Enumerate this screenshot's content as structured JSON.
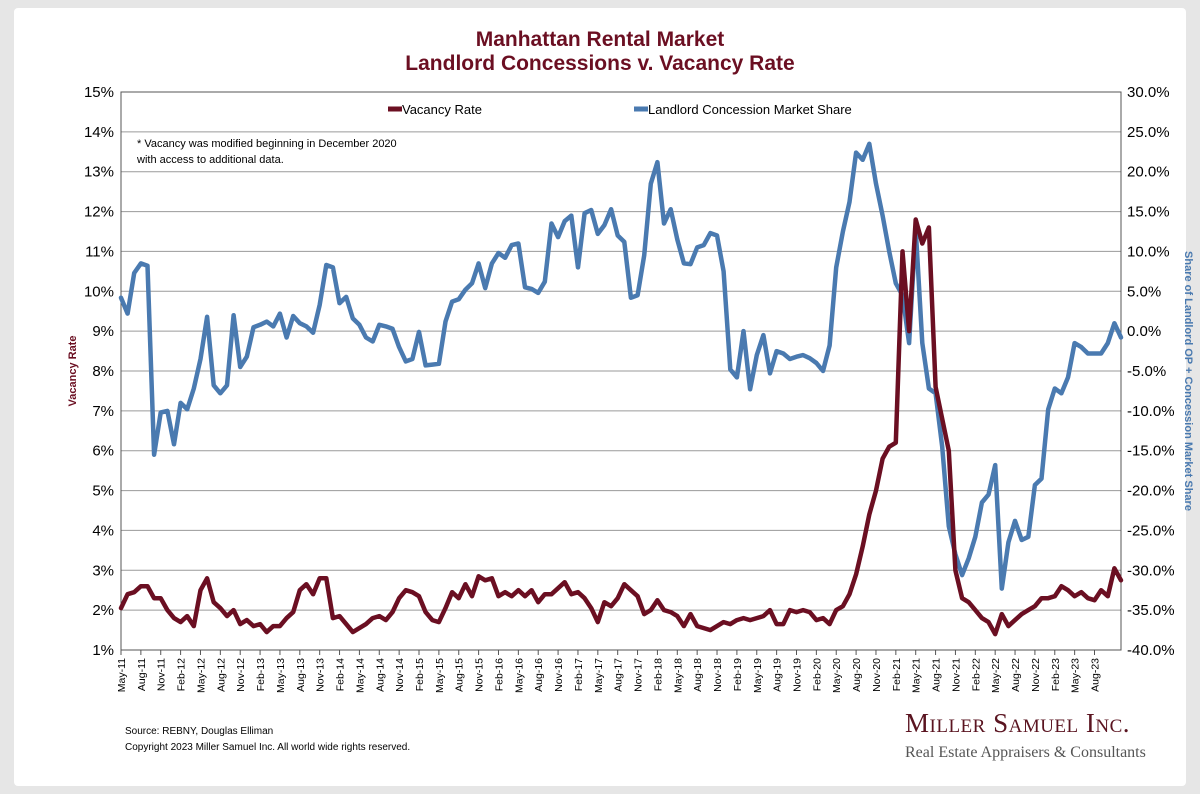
{
  "footer": {
    "source": "Source: REBNY, Douglas Elliman",
    "copyright": "Copyright 2023 Miller Samuel Inc.  All world wide rights reserved.",
    "brand": "Miller Samuel Inc.",
    "tagline": "Real Estate Appraisers & Consultants"
  },
  "chart_data": {
    "type": "line",
    "title": "Manhattan Rental Market",
    "subtitle": "Landlord Concessions v. Vacancy Rate",
    "annotation": [
      "* Vacancy was modified beginning in December 2020",
      "with access to additional data."
    ],
    "ylabel": "Vacancy Rate",
    "y2label": "Share of Landlord OP + Concession Market Share",
    "ylim": [
      1,
      15
    ],
    "y2lim": [
      -40,
      30
    ],
    "yticks": [
      "1%",
      "2%",
      "3%",
      "4%",
      "5%",
      "6%",
      "7%",
      "8%",
      "9%",
      "10%",
      "11%",
      "12%",
      "13%",
      "14%",
      "15%"
    ],
    "y2ticks": [
      "-40.0%",
      "-35.0%",
      "-30.0%",
      "-25.0%",
      "-20.0%",
      "-15.0%",
      "-10.0%",
      "-5.0%",
      "0.0%",
      "5.0%",
      "10.0%",
      "15.0%",
      "20.0%",
      "25.0%",
      "30.0%"
    ],
    "grid": true,
    "legend_position": "top",
    "x_start": "May-11",
    "xticks": [
      "May-11",
      "Aug-11",
      "Nov-11",
      "Feb-12",
      "May-12",
      "Aug-12",
      "Nov-12",
      "Feb-13",
      "May-13",
      "Aug-13",
      "Nov-13",
      "Feb-14",
      "May-14",
      "Aug-14",
      "Nov-14",
      "Feb-15",
      "May-15",
      "Aug-15",
      "Nov-15",
      "Feb-16",
      "May-16",
      "Aug-16",
      "Nov-16",
      "Feb-17",
      "May-17",
      "Aug-17",
      "Nov-17",
      "Feb-18",
      "May-18",
      "Aug-18",
      "Nov-18",
      "Feb-19",
      "May-19",
      "Aug-19",
      "Nov-19",
      "Feb-20",
      "May-20",
      "Aug-20",
      "Nov-20",
      "Feb-21",
      "May-21",
      "Aug-21",
      "Nov-21",
      "Feb-22",
      "May-22",
      "Aug-22",
      "Nov-22",
      "Feb-23",
      "May-23",
      "Aug-23"
    ],
    "series": [
      {
        "name": "Vacancy Rate",
        "axis": "left",
        "color": "#6b0f22",
        "values": [
          2.05,
          2.4,
          2.45,
          2.6,
          2.6,
          2.3,
          2.3,
          2.0,
          1.8,
          1.7,
          1.85,
          1.6,
          2.5,
          2.8,
          2.2,
          2.05,
          1.85,
          2.0,
          1.65,
          1.75,
          1.6,
          1.65,
          1.45,
          1.6,
          1.6,
          1.8,
          1.95,
          2.5,
          2.65,
          2.4,
          2.8,
          2.8,
          1.8,
          1.85,
          1.65,
          1.45,
          1.55,
          1.65,
          1.8,
          1.85,
          1.75,
          1.95,
          2.3,
          2.5,
          2.45,
          2.35,
          1.95,
          1.75,
          1.7,
          2.05,
          2.45,
          2.3,
          2.65,
          2.35,
          2.85,
          2.75,
          2.8,
          2.35,
          2.45,
          2.35,
          2.5,
          2.35,
          2.5,
          2.2,
          2.4,
          2.4,
          2.55,
          2.7,
          2.4,
          2.45,
          2.3,
          2.05,
          1.7,
          2.2,
          2.1,
          2.3,
          2.65,
          2.5,
          2.35,
          1.9,
          2.0,
          2.25,
          2.0,
          1.95,
          1.85,
          1.6,
          1.9,
          1.6,
          1.55,
          1.5,
          1.6,
          1.7,
          1.65,
          1.75,
          1.8,
          1.75,
          1.8,
          1.85,
          2.0,
          1.65,
          1.65,
          2.0,
          1.95,
          2.0,
          1.95,
          1.75,
          1.8,
          1.65,
          2.0,
          2.1,
          2.4,
          2.9,
          3.6,
          4.4,
          5.0,
          5.8,
          6.1,
          6.2,
          11.0,
          9.0,
          11.8,
          11.2,
          11.6,
          7.6,
          6.8,
          6.0,
          3.0,
          2.3,
          2.2,
          2.0,
          1.8,
          1.7,
          1.4,
          1.9,
          1.6,
          1.75,
          1.9,
          2.0,
          2.1,
          2.3,
          2.3,
          2.35,
          2.6,
          2.5,
          2.35,
          2.45,
          2.3,
          2.25,
          2.5,
          2.35,
          3.05,
          2.75
        ]
      },
      {
        "name": "Landlord Concession Market Share",
        "axis": "right",
        "color": "#4a7ab0",
        "values": [
          4.2,
          2.2,
          7.3,
          8.5,
          8.2,
          -15.5,
          -10.2,
          -10.0,
          -14.2,
          -9.0,
          -9.8,
          -7.2,
          -3.5,
          1.8,
          -6.8,
          -7.8,
          -6.8,
          2.0,
          -4.5,
          -3.2,
          0.5,
          0.8,
          1.2,
          0.6,
          2.2,
          -0.8,
          1.9,
          1.0,
          0.6,
          -0.2,
          3.3,
          8.3,
          8.0,
          3.5,
          4.3,
          1.6,
          0.8,
          -0.8,
          -1.3,
          0.8,
          0.6,
          0.3,
          -2.0,
          -3.8,
          -3.5,
          -0.1,
          -4.3,
          -4.2,
          -4.1,
          1.2,
          3.7,
          4.0,
          5.2,
          6.0,
          8.5,
          5.4,
          8.5,
          9.8,
          9.2,
          10.8,
          11.0,
          5.5,
          5.3,
          4.8,
          6.2,
          13.5,
          11.8,
          13.8,
          14.5,
          8.0,
          14.8,
          15.2,
          12.2,
          13.3,
          15.3,
          12.0,
          11.2,
          4.2,
          4.5,
          9.5,
          18.5,
          21.2,
          13.5,
          15.3,
          11.5,
          8.5,
          8.4,
          10.5,
          10.8,
          12.3,
          12.0,
          7.5,
          -4.8,
          -5.8,
          0.0,
          -7.3,
          -3.0,
          -0.5,
          -5.3,
          -2.5,
          -2.8,
          -3.5,
          -3.2,
          -3.0,
          -3.4,
          -4.0,
          -5.0,
          -1.8,
          8.0,
          12.5,
          16.2,
          22.4,
          21.5,
          23.5,
          18.5,
          14.5,
          10.0,
          6.0,
          4.5,
          -1.5,
          12.8,
          -1.5,
          -7.2,
          -7.8,
          -14.5,
          -24.5,
          -28.0,
          -30.6,
          -28.5,
          -25.8,
          -21.5,
          -20.5,
          -16.8,
          -32.3,
          -26.5,
          -23.8,
          -26.2,
          -25.8,
          -19.3,
          -18.5,
          -9.8,
          -7.2,
          -7.8,
          -5.8,
          -1.5,
          -2.0,
          -2.8,
          -2.8,
          -2.8,
          -1.5,
          1.0,
          -0.8
        ]
      }
    ]
  }
}
